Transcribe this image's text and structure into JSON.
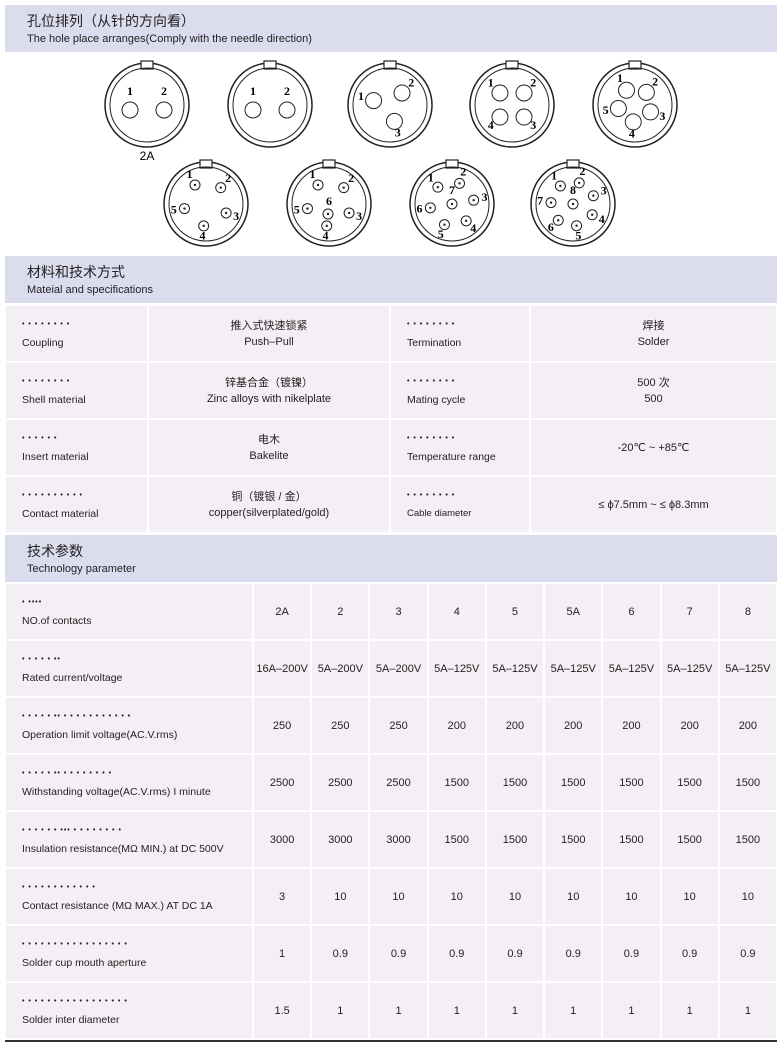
{
  "holes": {
    "title": "孔位排列（从针的方向看）",
    "subtitle": "The hole place arranges(Comply with the needle direction)",
    "connectors": [
      {
        "caption": "2A",
        "pins": [
          "1",
          "2"
        ]
      },
      {
        "pins": [
          "1",
          "2"
        ]
      },
      {
        "pins": [
          "1",
          "2",
          "3"
        ]
      },
      {
        "pins": [
          "1",
          "2",
          "3",
          "4"
        ]
      },
      {
        "pins": [
          "1",
          "2",
          "3",
          "4",
          "5"
        ]
      },
      {
        "pins": [
          "1",
          "2",
          "3",
          "4",
          "5"
        ]
      },
      {
        "pins": [
          "1",
          "2",
          "3",
          "4",
          "5",
          "6"
        ]
      },
      {
        "pins": [
          "1",
          "2",
          "3",
          "4",
          "5",
          "6",
          "7"
        ]
      },
      {
        "pins": [
          "1",
          "2",
          "3",
          "4",
          "5",
          "6",
          "7",
          "8"
        ]
      }
    ]
  },
  "materials": {
    "title": "材料和技术方式",
    "subtitle": "Mateial and specifications",
    "rows": [
      {
        "left": {
          "dots": "• • • • • • • •",
          "label": "Coupling"
        },
        "left_value": [
          "推入式快速锁紧",
          "Push–Pull"
        ],
        "right": {
          "dots": "• • • • • • • •",
          "label": "Termination"
        },
        "right_value": [
          "焊接",
          "Solder"
        ]
      },
      {
        "left": {
          "dots": "• • • • • • • •",
          "label": "Shell material"
        },
        "left_value": [
          "锌基合金（镀镍）",
          "Zinc alloys with nikelplate"
        ],
        "right": {
          "dots": "• • • • • • • •",
          "label": "Mating cycle"
        },
        "right_value": [
          "500 次",
          "500"
        ]
      },
      {
        "left": {
          "dots": "• • • • • •",
          "label": "Insert material"
        },
        "left_value": [
          "电木",
          "Bakelite"
        ],
        "right": {
          "dots": "• • • • • • • •",
          "label": "Temperature range"
        },
        "right_value": [
          "-20℃ ~ +85℃"
        ]
      },
      {
        "left": {
          "dots": "• • • • • • • • • •",
          "label": "Contact material"
        },
        "left_value": [
          "铜（镀银 / 金）",
          "copper(silverplated/gold)"
        ],
        "right": {
          "dots": "• • • • • • • •",
          "label": "Cable diameter"
        },
        "right_value": [
          "≤ ϕ7.5mm ~ ≤ ϕ8.3mm"
        ]
      }
    ]
  },
  "technology": {
    "title": "技术参数",
    "subtitle": "Technology parameter",
    "rows": [
      {
        "dots": "•  ••••",
        "label": "NO.of contacts",
        "values": [
          "2A",
          "2",
          "3",
          "4",
          "5",
          "5A",
          "6",
          "7",
          "8"
        ]
      },
      {
        "dots": "• • • • • ••",
        "label": "Rated current/voltage",
        "values": [
          "16A–200V",
          "5A–200V",
          "5A–200V",
          "5A–125V",
          "5A–125V",
          "5A–125V",
          "5A–125V",
          "5A–125V",
          "5A–125V"
        ]
      },
      {
        "dots": "• • • • • •• • • • • • • • • • • •",
        "label": "Operation limit voltage(AC.V.rms)",
        "values": [
          250,
          250,
          250,
          200,
          200,
          200,
          200,
          200,
          200
        ]
      },
      {
        "dots": "• • • • • •• • • • • • • • •",
        "label": "Withstanding voltage(AC.V.rms) I minute",
        "values": [
          2500,
          2500,
          2500,
          1500,
          1500,
          1500,
          1500,
          1500,
          1500
        ]
      },
      {
        "dots": "• • • • • • ••• • • • • • • • •",
        "label": "Insulation resistance(MΩ MIN.) at DC 500V",
        "values": [
          3000,
          3000,
          3000,
          1500,
          1500,
          1500,
          1500,
          1500,
          1500
        ]
      },
      {
        "dots": "• • • • • • • • • • • •",
        "label": "Contact resistance (MΩ MAX.) AT DC 1A",
        "values": [
          3,
          10,
          10,
          10,
          10,
          10,
          10,
          10,
          10
        ]
      },
      {
        "dots": "• • • • • • • • • • • • • • • • •",
        "label": "Solder cup mouth aperture",
        "values": [
          1,
          0.9,
          0.9,
          0.9,
          0.9,
          0.9,
          0.9,
          0.9,
          0.9
        ]
      },
      {
        "dots": "• • • • • • • • • • • • • • • • •",
        "label": "Solder inter diameter",
        "values": [
          1.5,
          1,
          1,
          1,
          1,
          1,
          1,
          1,
          1
        ]
      }
    ]
  }
}
